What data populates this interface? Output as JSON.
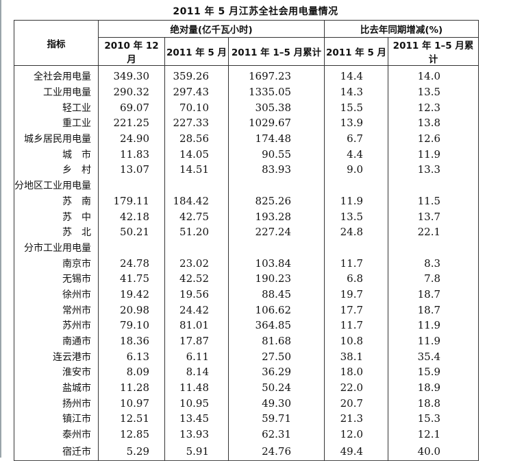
{
  "title": "2011 年 5 月江苏全社会用电量情况",
  "header": {
    "indicator": "指标",
    "group_absolute": "绝对量(亿千瓦小时)",
    "group_change": "比去年同期增减(%)",
    "columns": [
      "2010 年 12 月",
      "2011 年 5 月",
      "2011 年 1–5 月累计",
      "2011 年 5 月",
      "2011 年 1–5 月累计"
    ]
  },
  "rows": [
    {
      "label": "全社会用电量",
      "v": [
        "349.30",
        "359.26",
        "1697.23",
        "14.4",
        "14.0"
      ]
    },
    {
      "label": "工业用电量",
      "v": [
        "290.32",
        "297.43",
        "1335.05",
        "14.3",
        "13.5"
      ]
    },
    {
      "label": "轻工业",
      "v": [
        "69.07",
        "70.10",
        "305.38",
        "15.5",
        "12.3"
      ]
    },
    {
      "label": "重工业",
      "v": [
        "221.25",
        "227.33",
        "1029.67",
        "13.9",
        "13.8"
      ]
    },
    {
      "label": "城乡居民用电量",
      "v": [
        "24.90",
        "28.56",
        "174.48",
        "6.7",
        "12.6"
      ]
    },
    {
      "label": "城　市",
      "v": [
        "11.83",
        "14.05",
        "90.55",
        "4.4",
        "11.9"
      ]
    },
    {
      "label": "乡　村",
      "v": [
        "13.07",
        "14.51",
        "83.93",
        "9.0",
        "13.3"
      ]
    },
    {
      "label": "分地区工业用电量",
      "v": [
        "",
        "",
        "",
        "",
        ""
      ]
    },
    {
      "label": "苏　南",
      "v": [
        "179.11",
        "184.42",
        "825.26",
        "11.9",
        "11.5"
      ]
    },
    {
      "label": "苏　中",
      "v": [
        "42.18",
        "42.75",
        "193.28",
        "13.5",
        "13.7"
      ]
    },
    {
      "label": "苏　北",
      "v": [
        "50.21",
        "51.20",
        "227.24",
        "24.8",
        "22.1"
      ]
    },
    {
      "label": "分市工业用电量",
      "v": [
        "",
        "",
        "",
        "",
        ""
      ]
    },
    {
      "label": "南京市",
      "v": [
        "24.78",
        "23.02",
        "103.84",
        "11.7",
        "8.3"
      ]
    },
    {
      "label": "无锡市",
      "v": [
        "41.75",
        "42.52",
        "190.23",
        "6.8",
        "7.8"
      ]
    },
    {
      "label": "徐州市",
      "v": [
        "19.42",
        "19.56",
        "88.45",
        "19.7",
        "18.7"
      ]
    },
    {
      "label": "常州市",
      "v": [
        "20.98",
        "24.42",
        "106.62",
        "17.7",
        "18.7"
      ]
    },
    {
      "label": "苏州市",
      "v": [
        "79.10",
        "81.01",
        "364.85",
        "11.7",
        "11.9"
      ]
    },
    {
      "label": "南通市",
      "v": [
        "18.36",
        "17.87",
        "81.68",
        "10.8",
        "11.9"
      ]
    },
    {
      "label": "连云港市",
      "v": [
        "6.13",
        "6.11",
        "27.50",
        "38.1",
        "35.4"
      ]
    },
    {
      "label": "淮安市",
      "v": [
        "8.09",
        "8.14",
        "36.29",
        "18.0",
        "15.9"
      ]
    },
    {
      "label": "盐城市",
      "v": [
        "11.28",
        "11.48",
        "50.24",
        "22.0",
        "18.9"
      ]
    },
    {
      "label": "扬州市",
      "v": [
        "10.97",
        "10.95",
        "49.30",
        "20.7",
        "18.8"
      ]
    },
    {
      "label": "镇江市",
      "v": [
        "12.51",
        "13.45",
        "59.71",
        "21.3",
        "15.3"
      ]
    },
    {
      "label": "泰州市",
      "v": [
        "12.85",
        "13.93",
        "62.31",
        "12.0",
        "12.1"
      ]
    },
    {
      "label": "宿迁市",
      "v": [
        "5.29",
        "5.91",
        "24.76",
        "49.4",
        "40.0"
      ]
    }
  ]
}
